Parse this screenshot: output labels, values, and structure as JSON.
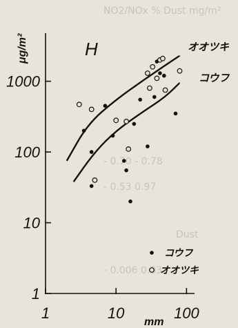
{
  "background_text": [
    "NO2/NOx %  Dust mg/m²",
    "- 0.70  - 0.78",
    "- 0.53  0.97",
    "Dust",
    "- 0.006  0.93"
  ],
  "chart_data": {
    "type": "scatter",
    "panel_label": "H",
    "x_unit": "mm",
    "y_unit": "μg/m²",
    "x_scale": "log",
    "y_scale": "log",
    "xlim": [
      1,
      130
    ],
    "ylim": [
      1,
      4000
    ],
    "x_ticks": [
      {
        "value": 1,
        "label": "1"
      },
      {
        "value": 10,
        "label": "10"
      },
      {
        "value": 100,
        "label": "100"
      }
    ],
    "y_ticks": [
      {
        "value": 1,
        "label": "1"
      },
      {
        "value": 10,
        "label": "10"
      },
      {
        "value": 100,
        "label": "100"
      },
      {
        "value": 1000,
        "label": "1000"
      }
    ],
    "legend": {
      "position": "bottom-right",
      "entries": [
        {
          "series": "kofu",
          "label": "コウフ",
          "marker": "filled"
        },
        {
          "series": "otsuki",
          "label": "オオツキ",
          "marker": "open"
        }
      ]
    },
    "series": [
      {
        "id": "kofu",
        "name": "コウフ",
        "marker": "filled",
        "points": [
          {
            "x": 3.5,
            "y": 200
          },
          {
            "x": 4.5,
            "y": 33
          },
          {
            "x": 4.5,
            "y": 100
          },
          {
            "x": 7,
            "y": 450
          },
          {
            "x": 9,
            "y": 170
          },
          {
            "x": 13,
            "y": 75
          },
          {
            "x": 14,
            "y": 55
          },
          {
            "x": 16,
            "y": 20
          },
          {
            "x": 18,
            "y": 250
          },
          {
            "x": 22,
            "y": 550
          },
          {
            "x": 28,
            "y": 120
          },
          {
            "x": 35,
            "y": 600
          },
          {
            "x": 38,
            "y": 1900
          },
          {
            "x": 42,
            "y": 1300
          },
          {
            "x": 48,
            "y": 1200
          },
          {
            "x": 70,
            "y": 350
          }
        ]
      },
      {
        "id": "otsuki",
        "name": "オオツキ",
        "marker": "open",
        "points": [
          {
            "x": 3.0,
            "y": 470
          },
          {
            "x": 4.5,
            "y": 400
          },
          {
            "x": 5,
            "y": 40
          },
          {
            "x": 10,
            "y": 280
          },
          {
            "x": 14,
            "y": 270
          },
          {
            "x": 15,
            "y": 110
          },
          {
            "x": 28,
            "y": 1300
          },
          {
            "x": 30,
            "y": 800
          },
          {
            "x": 33,
            "y": 1600
          },
          {
            "x": 38,
            "y": 1100
          },
          {
            "x": 42,
            "y": 2000
          },
          {
            "x": 46,
            "y": 2100
          },
          {
            "x": 50,
            "y": 750
          },
          {
            "x": 80,
            "y": 1400
          }
        ]
      }
    ],
    "trend_lines": [
      {
        "series": "otsuki",
        "label": "オオツキ",
        "points": [
          {
            "x": 2.0,
            "y": 75
          },
          {
            "x": 4,
            "y": 250
          },
          {
            "x": 10,
            "y": 550
          },
          {
            "x": 25,
            "y": 1050
          },
          {
            "x": 60,
            "y": 1900
          },
          {
            "x": 80,
            "y": 2300
          }
        ]
      },
      {
        "series": "kofu",
        "label": "コウフ",
        "points": [
          {
            "x": 2.5,
            "y": 38
          },
          {
            "x": 5,
            "y": 100
          },
          {
            "x": 10,
            "y": 200
          },
          {
            "x": 25,
            "y": 380
          },
          {
            "x": 50,
            "y": 600
          },
          {
            "x": 80,
            "y": 950
          }
        ]
      }
    ]
  }
}
